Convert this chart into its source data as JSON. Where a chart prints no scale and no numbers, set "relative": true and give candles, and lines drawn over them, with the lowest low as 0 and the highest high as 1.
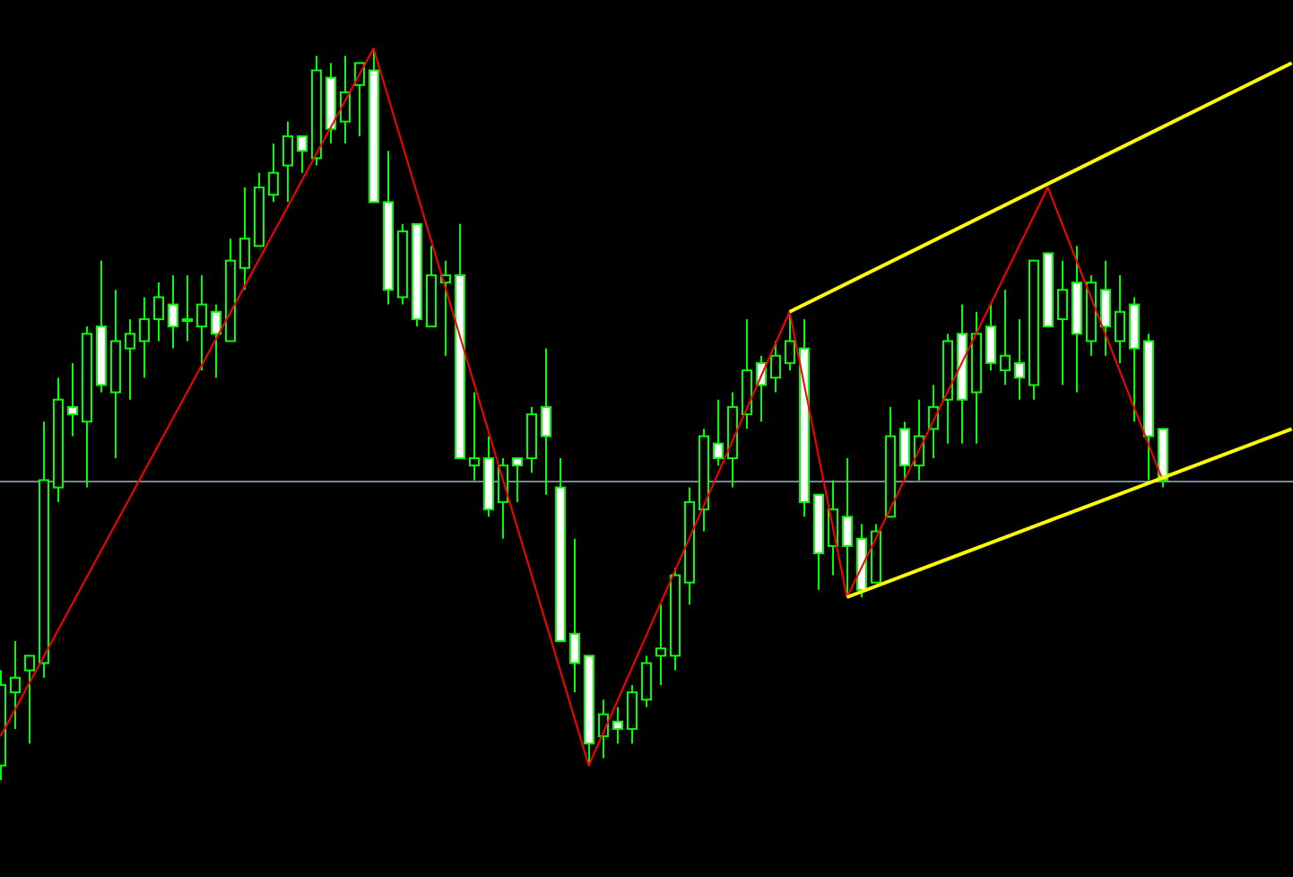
{
  "chart_data": {
    "type": "candlestick",
    "relative": true,
    "color": "#00ff00",
    "categories": [
      null,
      null,
      null,
      null,
      null,
      null,
      null,
      null,
      null,
      null,
      null,
      null,
      null,
      null,
      null,
      null,
      null,
      null,
      null,
      null,
      null,
      null,
      null,
      null,
      null,
      null,
      null,
      null,
      null,
      null,
      null,
      null,
      null,
      null,
      null,
      null,
      null,
      null,
      null,
      null,
      null,
      null,
      null,
      null,
      null,
      null,
      null,
      null,
      null,
      null,
      null,
      null,
      null,
      null,
      null,
      null,
      null,
      null,
      null,
      null,
      null,
      null,
      null,
      null,
      null,
      null,
      null,
      null,
      null,
      null,
      null,
      null,
      null,
      null,
      null,
      null,
      null,
      null,
      null,
      null,
      null,
      null,
      null,
      null,
      null,
      null,
      null,
      null,
      null,
      null,
      null
    ],
    "ohlc": [
      [
        0.02,
        0.15,
        0,
        0.13
      ],
      [
        0.12,
        0.19,
        0.07,
        0.14
      ],
      [
        0.15,
        0.17,
        0.05,
        0.17
      ],
      [
        0.16,
        0.49,
        0.14,
        0.41
      ],
      [
        0.4,
        0.55,
        0.38,
        0.52
      ],
      [
        0.51,
        0.57,
        0.47,
        0.5
      ],
      [
        0.49,
        0.62,
        0.4,
        0.61
      ],
      [
        0.62,
        0.71,
        0.53,
        0.54
      ],
      [
        0.53,
        0.67,
        0.44,
        0.6
      ],
      [
        0.59,
        0.63,
        0.52,
        0.61
      ],
      [
        0.6,
        0.66,
        0.55,
        0.63
      ],
      [
        0.63,
        0.68,
        0.6,
        0.66
      ],
      [
        0.65,
        0.69,
        0.59,
        0.62
      ],
      [
        0.63,
        0.69,
        0.6,
        0.63
      ],
      [
        0.62,
        0.69,
        0.56,
        0.65
      ],
      [
        0.64,
        0.65,
        0.55,
        0.61
      ],
      [
        0.6,
        0.74,
        0.6,
        0.71
      ],
      [
        0.7,
        0.81,
        0.67,
        0.74
      ],
      [
        0.73,
        0.83,
        0.73,
        0.81
      ],
      [
        0.8,
        0.87,
        0.79,
        0.83
      ],
      [
        0.84,
        0.9,
        0.79,
        0.88
      ],
      [
        0.88,
        0.88,
        0.83,
        0.86
      ],
      [
        0.85,
        0.99,
        0.84,
        0.97
      ],
      [
        0.96,
        0.98,
        0.87,
        0.89
      ],
      [
        0.9,
        0.99,
        0.87,
        0.94
      ],
      [
        0.95,
        0.98,
        0.88,
        0.98
      ],
      [
        0.97,
        1,
        0.79,
        0.79
      ],
      [
        0.79,
        0.86,
        0.65,
        0.67
      ],
      [
        0.66,
        0.76,
        0.65,
        0.75
      ],
      [
        0.76,
        0.76,
        0.62,
        0.63
      ],
      [
        0.62,
        0.73,
        0.62,
        0.69
      ],
      [
        0.68,
        0.71,
        0.58,
        0.69
      ],
      [
        0.69,
        0.76,
        0.44,
        0.44
      ],
      [
        0.43,
        0.53,
        0.41,
        0.44
      ],
      [
        0.44,
        0.47,
        0.36,
        0.37
      ],
      [
        0.38,
        0.44,
        0.33,
        0.43
      ],
      [
        0.44,
        0.44,
        0.38,
        0.43
      ],
      [
        0.44,
        0.51,
        0.42,
        0.5
      ],
      [
        0.51,
        0.59,
        0.39,
        0.47
      ],
      [
        0.4,
        0.44,
        0.19,
        0.19
      ],
      [
        0.2,
        0.33,
        0.12,
        0.16
      ],
      [
        0.17,
        0.17,
        0.02,
        0.05
      ],
      [
        0.06,
        0.11,
        0.03,
        0.09
      ],
      [
        0.08,
        0.1,
        0.05,
        0.07
      ],
      [
        0.07,
        0.13,
        0.05,
        0.12
      ],
      [
        0.11,
        0.17,
        0.1,
        0.16
      ],
      [
        0.17,
        0.24,
        0.13,
        0.18
      ],
      [
        0.17,
        0.29,
        0.15,
        0.28
      ],
      [
        0.27,
        0.4,
        0.24,
        0.38
      ],
      [
        0.37,
        0.48,
        0.34,
        0.47
      ],
      [
        0.46,
        0.52,
        0.43,
        0.44
      ],
      [
        0.44,
        0.53,
        0.4,
        0.51
      ],
      [
        0.5,
        0.63,
        0.48,
        0.56
      ],
      [
        0.57,
        0.58,
        0.49,
        0.54
      ],
      [
        0.55,
        0.6,
        0.53,
        0.58
      ],
      [
        0.57,
        0.64,
        0.56,
        0.6
      ],
      [
        0.59,
        0.63,
        0.36,
        0.38
      ],
      [
        0.39,
        0.39,
        0.26,
        0.31
      ],
      [
        0.32,
        0.41,
        0.28,
        0.37
      ],
      [
        0.36,
        0.44,
        0.25,
        0.32
      ],
      [
        0.33,
        0.35,
        0.25,
        0.26
      ],
      [
        0.27,
        0.35,
        0.27,
        0.34
      ],
      [
        0.36,
        0.51,
        0.36,
        0.47
      ],
      [
        0.48,
        0.49,
        0.41,
        0.43
      ],
      [
        0.43,
        0.52,
        0.41,
        0.47
      ],
      [
        0.48,
        0.54,
        0.44,
        0.51
      ],
      [
        0.52,
        0.61,
        0.46,
        0.6
      ],
      [
        0.61,
        0.65,
        0.46,
        0.52
      ],
      [
        0.53,
        0.64,
        0.46,
        0.61
      ],
      [
        0.62,
        0.65,
        0.56,
        0.57
      ],
      [
        0.56,
        0.67,
        0.54,
        0.58
      ],
      [
        0.57,
        0.63,
        0.52,
        0.55
      ],
      [
        0.54,
        0.71,
        0.52,
        0.71
      ],
      [
        0.72,
        0.72,
        0.62,
        0.62
      ],
      [
        0.63,
        0.71,
        0.54,
        0.67
      ],
      [
        0.68,
        0.73,
        0.53,
        0.61
      ],
      [
        0.6,
        0.69,
        0.58,
        0.68
      ],
      [
        0.67,
        0.71,
        0.58,
        0.62
      ],
      [
        0.6,
        0.69,
        0.57,
        0.64
      ],
      [
        0.65,
        0.66,
        0.49,
        0.59
      ],
      [
        0.6,
        0.61,
        0.41,
        0.47
      ],
      [
        0.48,
        0.48,
        0.4,
        0.41
      ],
      null,
      null,
      null,
      null,
      null,
      null,
      null,
      null,
      null
    ],
    "series": [
      {
        "type": "line",
        "color": "#ff0000",
        "values": [
          0.06,
          null,
          null,
          null,
          null,
          null,
          null,
          null,
          null,
          null,
          null,
          null,
          null,
          null,
          null,
          null,
          null,
          null,
          null,
          null,
          null,
          null,
          null,
          null,
          null,
          null,
          1,
          null,
          null,
          null,
          null,
          null,
          null,
          null,
          null,
          null,
          null,
          null,
          null,
          null,
          null,
          0.02,
          null,
          null,
          null,
          null,
          null,
          null,
          null,
          null,
          null,
          null,
          null,
          null,
          null,
          0.64,
          null,
          null,
          null,
          0.25,
          null,
          null,
          null,
          null,
          null,
          null,
          null,
          null,
          null,
          null,
          null,
          null,
          null,
          0.81,
          null,
          null,
          null,
          null,
          null,
          null,
          null,
          0.41,
          null,
          null,
          null,
          null,
          null,
          null,
          null,
          null,
          null
        ]
      },
      {
        "type": "line",
        "color": "#ffff00",
        "values": [
          null,
          null,
          null,
          null,
          null,
          null,
          null,
          null,
          null,
          null,
          null,
          null,
          null,
          null,
          null,
          null,
          null,
          null,
          null,
          null,
          null,
          null,
          null,
          null,
          null,
          null,
          null,
          null,
          null,
          null,
          null,
          null,
          null,
          null,
          null,
          null,
          null,
          null,
          null,
          null,
          null,
          null,
          null,
          null,
          null,
          null,
          null,
          null,
          null,
          null,
          null,
          null,
          null,
          null,
          null,
          0.64,
          null,
          null,
          null,
          null,
          null,
          null,
          null,
          null,
          null,
          null,
          null,
          null,
          null,
          null,
          null,
          null,
          null,
          null,
          null,
          null,
          null,
          null,
          null,
          null,
          null,
          null,
          null,
          null,
          null,
          null,
          null,
          null,
          null,
          null,
          0.98
        ]
      },
      {
        "type": "line",
        "color": "#ffff00",
        "values": [
          null,
          null,
          null,
          null,
          null,
          null,
          null,
          null,
          null,
          null,
          null,
          null,
          null,
          null,
          null,
          null,
          null,
          null,
          null,
          null,
          null,
          null,
          null,
          null,
          null,
          null,
          null,
          null,
          null,
          null,
          null,
          null,
          null,
          null,
          null,
          null,
          null,
          null,
          null,
          null,
          null,
          null,
          null,
          null,
          null,
          null,
          null,
          null,
          null,
          null,
          null,
          null,
          null,
          null,
          null,
          null,
          null,
          null,
          null,
          0.25,
          null,
          null,
          null,
          null,
          null,
          null,
          null,
          null,
          null,
          null,
          null,
          null,
          null,
          null,
          null,
          null,
          null,
          null,
          null,
          null,
          null,
          null,
          null,
          null,
          null,
          null,
          null,
          null,
          null,
          null,
          0.48
        ]
      }
    ],
    "ref_lines": [
      {
        "axis": "y",
        "value": 0.41,
        "color": "#778899"
      }
    ]
  }
}
